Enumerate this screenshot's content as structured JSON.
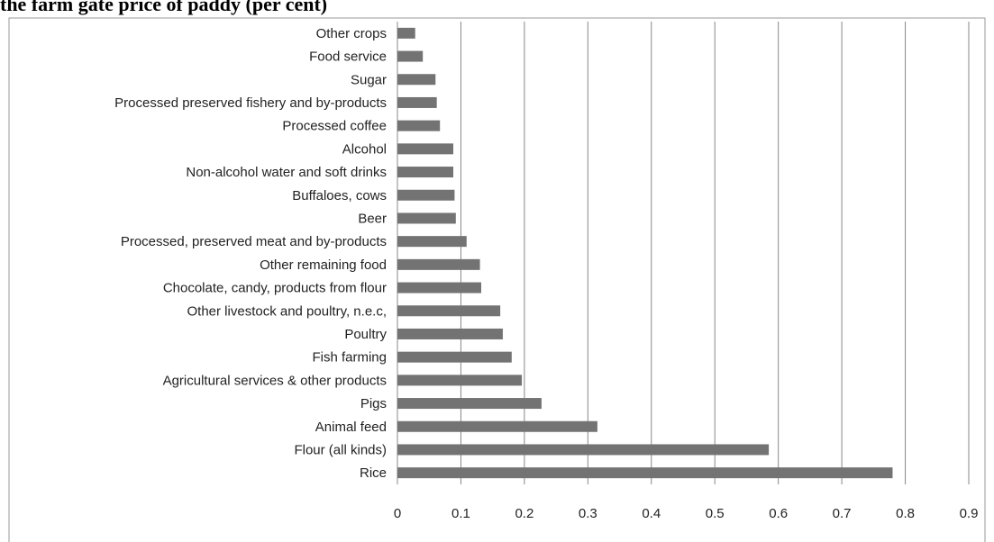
{
  "chart_data": {
    "type": "bar",
    "orientation": "horizontal",
    "title": "the farm gate price of paddy (per cent)",
    "categories": [
      "Other crops",
      "Food service",
      "Sugar",
      "Processed preserved fishery and by-products",
      "Processed coffee",
      "Alcohol",
      "Non-alcohol water and soft drinks",
      "Buffaloes, cows",
      "Beer",
      "Processed, preserved meat and by-products",
      "Other remaining food",
      "Chocolate, candy, products from flour",
      "Other livestock and poultry, n.e.c,",
      "Poultry",
      "Fish farming",
      "Agricultural services & other products",
      "Pigs",
      "Animal feed",
      "Flour (all kinds)",
      "Rice"
    ],
    "values": [
      0.028,
      0.04,
      0.06,
      0.062,
      0.067,
      0.088,
      0.088,
      0.09,
      0.092,
      0.109,
      0.13,
      0.132,
      0.162,
      0.166,
      0.18,
      0.196,
      0.227,
      0.315,
      0.585,
      0.78
    ],
    "color": "#737373",
    "xlim": [
      0,
      0.9
    ],
    "xticks": [
      0,
      0.1,
      0.2,
      0.3,
      0.4,
      0.5,
      0.6,
      0.7,
      0.8,
      0.9
    ],
    "grid": true
  }
}
